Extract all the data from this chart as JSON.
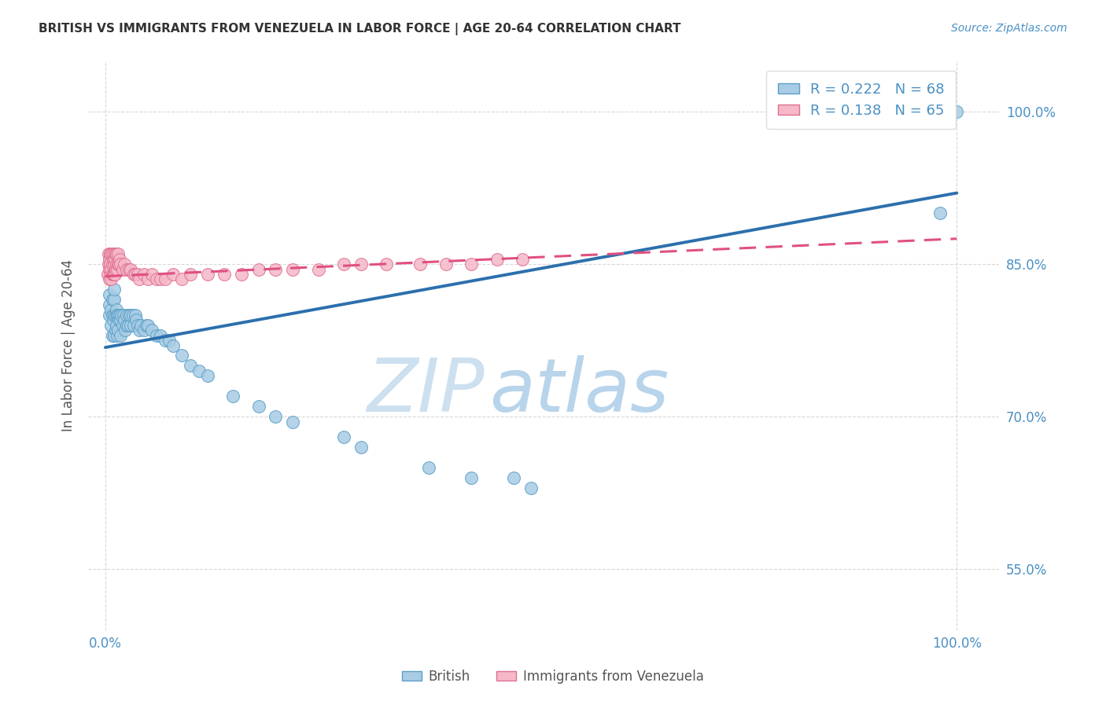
{
  "title": "BRITISH VS IMMIGRANTS FROM VENEZUELA IN LABOR FORCE | AGE 20-64 CORRELATION CHART",
  "source": "Source: ZipAtlas.com",
  "ylabel": "In Labor Force | Age 20-64",
  "legend_label1": "British",
  "legend_label2": "Immigrants from Venezuela",
  "R1": 0.222,
  "N1": 68,
  "R2": 0.138,
  "N2": 65,
  "color_blue_fill": "#a8cce4",
  "color_blue_edge": "#5a9fc8",
  "color_pink_fill": "#f5b8c8",
  "color_pink_edge": "#e07090",
  "color_line_blue": "#2c6fad",
  "color_line_pink": "#e05080",
  "color_tick_labels": "#4a90c4",
  "color_title": "#333333",
  "color_ylabel": "#555555",
  "color_watermark_zip": "#cce0f0",
  "color_watermark_atlas": "#b8d4eb",
  "color_grid": "#d8d8d8",
  "background_color": "#ffffff",
  "yticks": [
    0.55,
    0.7,
    0.85,
    1.0
  ],
  "ytick_labels": [
    "55.0%",
    "70.0%",
    "85.0%",
    "100.0%"
  ],
  "xtick_show": [
    0.0,
    1.0
  ],
  "xtick_labels": [
    "0.0%",
    "100.0%"
  ],
  "xlim": [
    -0.02,
    1.05
  ],
  "ylim": [
    0.49,
    1.05
  ],
  "blue_trend_x0": 0.0,
  "blue_trend_y0": 0.768,
  "blue_trend_x1": 1.0,
  "blue_trend_y1": 0.92,
  "pink_trend_x0": 0.0,
  "pink_trend_y0": 0.838,
  "pink_trend_x1": 1.0,
  "pink_trend_y1": 0.875,
  "blue_x": [
    0.005,
    0.005,
    0.005,
    0.007,
    0.007,
    0.008,
    0.008,
    0.008,
    0.009,
    0.01,
    0.01,
    0.01,
    0.01,
    0.012,
    0.012,
    0.013,
    0.013,
    0.014,
    0.014,
    0.015,
    0.015,
    0.016,
    0.017,
    0.018,
    0.018,
    0.019,
    0.02,
    0.021,
    0.022,
    0.023,
    0.025,
    0.025,
    0.027,
    0.028,
    0.03,
    0.03,
    0.032,
    0.033,
    0.035,
    0.036,
    0.038,
    0.04,
    0.042,
    0.045,
    0.048,
    0.05,
    0.055,
    0.06,
    0.065,
    0.07,
    0.075,
    0.08,
    0.09,
    0.1,
    0.11,
    0.12,
    0.15,
    0.18,
    0.2,
    0.22,
    0.28,
    0.3,
    0.38,
    0.43,
    0.48,
    0.5,
    0.98,
    1.0
  ],
  "blue_y": [
    0.8,
    0.81,
    0.82,
    0.79,
    0.805,
    0.78,
    0.8,
    0.815,
    0.795,
    0.78,
    0.8,
    0.815,
    0.825,
    0.785,
    0.8,
    0.79,
    0.805,
    0.78,
    0.8,
    0.785,
    0.8,
    0.795,
    0.8,
    0.78,
    0.795,
    0.8,
    0.79,
    0.8,
    0.795,
    0.785,
    0.79,
    0.8,
    0.79,
    0.8,
    0.79,
    0.8,
    0.8,
    0.79,
    0.8,
    0.795,
    0.79,
    0.785,
    0.79,
    0.785,
    0.79,
    0.79,
    0.785,
    0.78,
    0.78,
    0.775,
    0.775,
    0.77,
    0.76,
    0.75,
    0.745,
    0.74,
    0.72,
    0.71,
    0.7,
    0.695,
    0.68,
    0.67,
    0.65,
    0.64,
    0.64,
    0.63,
    0.9,
    1.0
  ],
  "pink_x": [
    0.003,
    0.004,
    0.004,
    0.005,
    0.005,
    0.005,
    0.006,
    0.006,
    0.006,
    0.007,
    0.007,
    0.007,
    0.008,
    0.008,
    0.008,
    0.009,
    0.009,
    0.01,
    0.01,
    0.01,
    0.011,
    0.011,
    0.012,
    0.012,
    0.013,
    0.013,
    0.014,
    0.015,
    0.015,
    0.016,
    0.017,
    0.018,
    0.02,
    0.022,
    0.025,
    0.028,
    0.03,
    0.033,
    0.035,
    0.038,
    0.04,
    0.045,
    0.05,
    0.055,
    0.06,
    0.065,
    0.07,
    0.08,
    0.09,
    0.1,
    0.12,
    0.14,
    0.16,
    0.18,
    0.2,
    0.22,
    0.25,
    0.28,
    0.3,
    0.33,
    0.37,
    0.4,
    0.43,
    0.46,
    0.49
  ],
  "pink_y": [
    0.84,
    0.85,
    0.86,
    0.835,
    0.845,
    0.855,
    0.84,
    0.85,
    0.86,
    0.835,
    0.845,
    0.86,
    0.84,
    0.85,
    0.86,
    0.84,
    0.855,
    0.84,
    0.85,
    0.86,
    0.84,
    0.855,
    0.845,
    0.86,
    0.85,
    0.86,
    0.845,
    0.85,
    0.86,
    0.85,
    0.855,
    0.85,
    0.845,
    0.85,
    0.845,
    0.845,
    0.845,
    0.84,
    0.84,
    0.84,
    0.835,
    0.84,
    0.835,
    0.84,
    0.835,
    0.835,
    0.835,
    0.84,
    0.835,
    0.84,
    0.84,
    0.84,
    0.84,
    0.845,
    0.845,
    0.845,
    0.845,
    0.85,
    0.85,
    0.85,
    0.85,
    0.85,
    0.85,
    0.855,
    0.855
  ]
}
